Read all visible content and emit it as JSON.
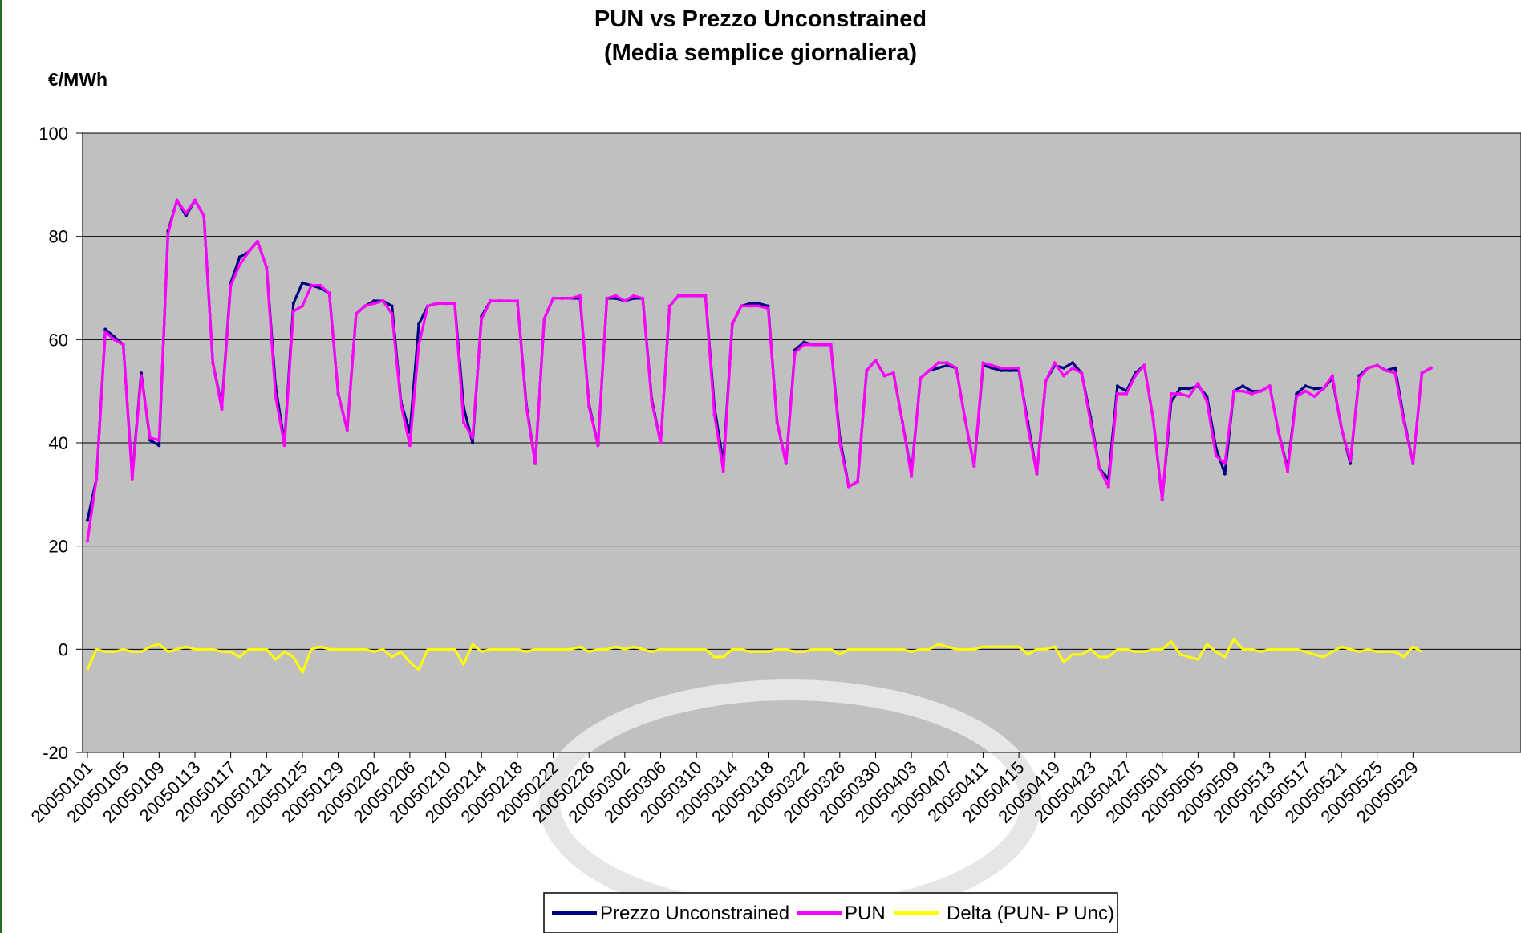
{
  "chart_data": {
    "type": "line",
    "title": "PUN vs Prezzo Unconstrained",
    "subtitle": "(Media semplice giornaliera)",
    "ylabel": "€/MWh",
    "xlabel": "",
    "ylim": [
      -20,
      100
    ],
    "yticks": [
      100,
      80,
      60,
      40,
      20,
      0,
      -20
    ],
    "grid": true,
    "legend_position": "bottom",
    "x_tick_labels": [
      "20050101",
      "20050105",
      "20050109",
      "20050113",
      "20050117",
      "20050121",
      "20050125",
      "20050129",
      "20050202",
      "20050206",
      "20050210",
      "20050214",
      "20050218",
      "20050222",
      "20050226",
      "20050302",
      "20050306",
      "20050310",
      "20050314",
      "20050318",
      "20050322",
      "20050326",
      "20050330",
      "20050403",
      "20050407",
      "20050411",
      "20050415",
      "20050419",
      "20050423",
      "20050427",
      "20050501",
      "20050505",
      "20050509",
      "20050513",
      "20050517",
      "20050521",
      "20050525",
      "20050529"
    ],
    "tick_every": 4,
    "colors": {
      "plot_bg": "#c0c0c0",
      "grid": "#000000"
    },
    "series": [
      {
        "name": "Prezzo Unconstrained",
        "color": "#000080",
        "values": [
          25,
          33,
          62,
          60.5,
          59,
          33.5,
          53.5,
          40.5,
          39.5,
          81,
          87,
          84,
          87,
          84,
          55.5,
          47,
          71,
          76,
          77,
          79,
          74,
          51,
          40,
          67,
          71,
          70.5,
          70,
          69,
          49.5,
          42.5,
          65,
          66.5,
          67.5,
          67.5,
          66.5,
          48,
          42,
          63,
          66.5,
          67,
          67,
          67,
          47,
          40,
          64.5,
          67.5,
          67.5,
          67.5,
          67.5,
          47.5,
          36,
          64,
          68,
          68,
          68,
          68,
          47.5,
          39.5,
          68,
          68,
          67.5,
          68,
          68,
          48.5,
          40,
          66.5,
          68.5,
          68.5,
          68.5,
          68.5,
          47,
          36,
          63,
          66.5,
          67,
          67,
          66.5,
          44,
          36,
          58,
          59.5,
          59,
          59,
          59,
          41,
          31.5,
          32.5,
          54,
          56,
          53,
          53.5,
          44,
          34,
          52.5,
          54,
          54.5,
          55,
          54.5,
          44.5,
          35.5,
          55,
          54.5,
          54,
          54,
          54,
          44,
          34,
          52,
          55,
          54.5,
          55.5,
          53.5,
          45,
          35,
          33,
          51,
          50,
          53.5,
          55,
          44.5,
          29,
          48,
          50.5,
          50.5,
          51,
          49,
          39,
          34,
          50,
          51,
          50,
          50,
          51,
          42,
          35,
          49.5,
          51,
          50.5,
          50.5,
          52.5,
          43,
          36,
          53,
          54.5,
          55,
          54,
          54.5,
          44.5,
          36,
          53.5,
          54.5
        ]
      },
      {
        "name": "PUN",
        "color": "#ff00ff",
        "values": [
          21,
          33,
          61.5,
          60,
          59,
          33,
          53,
          41,
          40.5,
          80.5,
          87,
          84.5,
          87,
          84,
          55.5,
          46.5,
          70.5,
          74.5,
          77,
          79,
          74,
          49,
          39.5,
          65.5,
          66.5,
          70.5,
          70.5,
          69,
          49.5,
          42.5,
          65,
          66.5,
          67,
          67.5,
          65,
          47.5,
          39.5,
          59,
          66.5,
          67,
          67,
          67,
          44,
          41,
          64,
          67.5,
          67.5,
          67.5,
          67.5,
          47,
          36,
          64,
          68,
          68,
          68,
          68.5,
          47,
          39.5,
          68,
          68.5,
          67.5,
          68.5,
          68,
          48,
          40,
          66.5,
          68.5,
          68.5,
          68.5,
          68.5,
          45.5,
          34.5,
          63,
          66.5,
          66.5,
          66.5,
          66,
          44,
          36,
          57.5,
          59,
          59,
          59,
          59,
          40,
          31.5,
          32.5,
          54,
          56,
          53,
          53.5,
          44,
          33.5,
          52.5,
          54,
          55.5,
          55.5,
          54.5,
          44.5,
          35.5,
          55.5,
          55,
          54.5,
          54.5,
          54.5,
          43,
          34,
          52,
          55.5,
          53,
          54.5,
          53.5,
          44,
          35,
          31.5,
          49.5,
          49.5,
          53,
          55,
          44.5,
          29,
          49.5,
          49.5,
          49,
          51.5,
          48,
          37.5,
          36,
          50,
          50,
          49.5,
          50,
          51,
          42,
          34.5,
          49,
          50,
          49,
          50.5,
          53,
          43,
          36.5,
          52.5,
          54.5,
          55,
          54,
          53.5,
          44,
          36,
          53.5,
          54.5
        ]
      },
      {
        "name": "Delta (PUN- P Unc)",
        "color": "#ffff00",
        "values": [
          -4,
          0,
          -0.5,
          -0.5,
          0,
          -0.5,
          -0.5,
          0.5,
          1,
          -0.5,
          0,
          0.5,
          0,
          0,
          0,
          -0.5,
          -0.5,
          -1.5,
          0,
          0,
          0,
          -2,
          -0.5,
          -1.5,
          -4.5,
          0,
          0.5,
          0,
          0,
          0,
          0,
          0,
          -0.5,
          0,
          -1.5,
          -0.5,
          -2.5,
          -4,
          0,
          0,
          0,
          0,
          -3,
          1,
          -0.5,
          0,
          0,
          0,
          0,
          -0.5,
          0,
          0,
          0,
          0,
          0,
          0.5,
          -0.5,
          0,
          0,
          0.5,
          0,
          0.5,
          0,
          -0.5,
          0,
          0,
          0,
          0,
          0,
          0,
          -1.5,
          -1.5,
          0,
          0,
          -0.5,
          -0.5,
          -0.5,
          0,
          0,
          -0.5,
          -0.5,
          0,
          0,
          0,
          -1,
          0,
          0,
          0,
          0,
          0,
          0,
          0,
          -0.5,
          0,
          0,
          1,
          0.5,
          0,
          0,
          0,
          0.5,
          0.5,
          0.5,
          0.5,
          0.5,
          -1,
          0,
          0,
          0.5,
          -2.5,
          -1,
          -1,
          0,
          -1.5,
          -1.5,
          0,
          0,
          -0.5,
          -0.5,
          0,
          0,
          1.5,
          -1,
          -1.5,
          -2,
          1,
          -0.5,
          -1.5,
          2,
          0,
          0,
          -0.5,
          0,
          0,
          0,
          0,
          -0.5,
          -1,
          -1.5,
          -0.5,
          0.5,
          0,
          -0.5,
          0,
          -0.5,
          -0.5,
          -0.5,
          -1.5,
          0.5,
          -0.5
        ]
      }
    ]
  }
}
